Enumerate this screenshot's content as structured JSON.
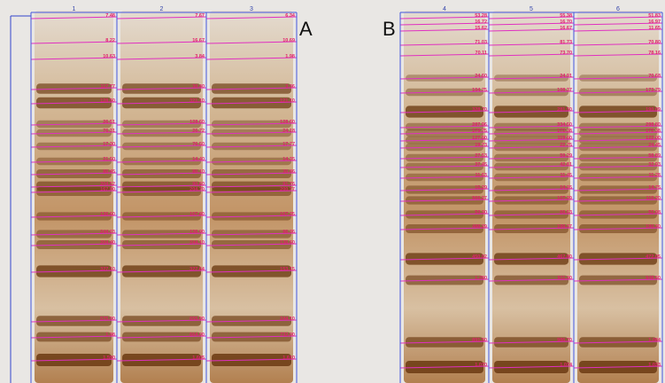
{
  "panels": [
    {
      "label": "A",
      "lanes": [
        {
          "number": "1",
          "bands": [
            "7.48",
            "8.22",
            "10.63",
            "117.77",
            "128.50",
            "26.51",
            "76.31",
            "17.30",
            "21.50",
            "80.45",
            "204.52",
            "167.00",
            "136.60",
            "244.03",
            "204.40",
            "327.10",
            "575.00",
            "1.98",
            "1.590"
          ]
        },
        {
          "number": "2",
          "bands": [
            "7.67",
            "16.67",
            "3.84",
            "30.40",
            "321.10",
            "128.60",
            "26.72",
            "76.50",
            "14.40",
            "80.10",
            "90.60",
            "204.70",
            "167.80",
            "136.90",
            "244.10",
            "327.64",
            "655.00",
            "664.00",
            "1.605"
          ]
        },
        {
          "number": "3",
          "bands": [
            "6.34",
            "10.69",
            "1.98",
            "3.36",
            "121.10",
            "128.60",
            "24.18",
            "17.77",
            "14.35",
            "30.86",
            "91.76",
            "200.77",
            "167.35",
            "96.36",
            "136.60",
            "153.15",
            "244.10",
            "732.00",
            "1.610"
          ]
        }
      ]
    },
    {
      "label": "B",
      "lanes": [
        {
          "number": "4",
          "bands": [
            "53.28",
            "16.72",
            "15.62",
            "71.03",
            "70.11",
            "24.60",
            "104.75",
            "328.70",
            "287.96",
            "179.75",
            "127.50",
            "19.73",
            "27.53",
            "37.45",
            "11.63",
            "15.29",
            "900.27",
            "53.30",
            "488.29",
            "450.02",
            "1.280",
            "891.50",
            "1.070"
          ]
        },
        {
          "number": "5",
          "bands": [
            "55.38",
            "16.70",
            "16.67",
            "81.73",
            "73.70",
            "24.91",
            "108.37",
            "281.50",
            "334.50",
            "172.38",
            "119.60",
            "22.75",
            "59.29",
            "42.81",
            "11.45",
            "14.35",
            "107.39",
            "69.53",
            "199.37",
            "467.80",
            "911.30",
            "986.70",
            "1.074"
          ]
        },
        {
          "number": "6",
          "bands": [
            "51.83",
            "16.97",
            "11.65",
            "70.80",
            "78.16",
            "70.68",
            "173.79",
            "190.09",
            "298.80",
            "172.38",
            "122.00",
            "24.45",
            "58.89",
            "32.93",
            "11.28",
            "14.75",
            "110.20",
            "52.08",
            "190.30",
            "472.05",
            "948.50",
            "1.084",
            "1.033"
          ]
        }
      ]
    }
  ]
}
